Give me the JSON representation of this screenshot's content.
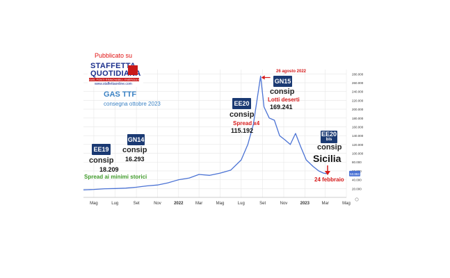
{
  "header": {
    "published_on": "Pubblicato su",
    "logo_line1": "STAFFETTA",
    "logo_line2": "QUOTIDIANA",
    "logo_tagline": "GAS, FONTI RINNOVABILI, ENERGIA ELETTRICA",
    "logo_url": "www.staffettaonline.com",
    "chart_title": "GAS TTF",
    "chart_subtitle": "consegna ottobre 2023"
  },
  "annotations": {
    "ee19": {
      "badge": "EE19",
      "label": "consip",
      "value": "18.209"
    },
    "gn14": {
      "badge": "GN14",
      "label": "consip",
      "value": "16.293"
    },
    "minimi": "Spread ai minimi storici",
    "ee20": {
      "badge": "EE20",
      "label": "consip",
      "note": "Spread x4",
      "value": "115.192"
    },
    "peak_date": "26 agosto 2022",
    "gn15": {
      "badge": "GN15",
      "label": "consip",
      "note": "Lotti deserti",
      "value": "169.241"
    },
    "ee20bis": {
      "badge": "EE20",
      "badge_sub": "bis",
      "label": "consip",
      "region": "Sicilia",
      "date": "24 febbraio"
    },
    "last_price": "53.884"
  },
  "colors": {
    "line": "#4a72d4",
    "badge": "#1b3a73",
    "red": "#d61a1a",
    "green": "#3f9a2a",
    "grid": "#e6e6e6",
    "axis_text": "#333333"
  },
  "chart_data": {
    "type": "line",
    "title": "GAS TTF",
    "subtitle": "consegna ottobre 2023",
    "xlabel": "",
    "ylabel": "",
    "x_ticks": [
      "Mag",
      "Lug",
      "Set",
      "Nov",
      "2022",
      "Mar",
      "Mag",
      "Lug",
      "Set",
      "Nov",
      "2023",
      "Mar",
      "Mag"
    ],
    "y_ticks": [
      20,
      40,
      60,
      80,
      100,
      120,
      140,
      160,
      180,
      200,
      220,
      240,
      260,
      280
    ],
    "y_tick_labels": [
      "20.000",
      "40.000",
      "60.000",
      "80.000",
      "100.000",
      "120.000",
      "140.000",
      "160.000",
      "180.000",
      "200.000",
      "220.000",
      "240.000",
      "260.000",
      "280.000"
    ],
    "ylim": [
      0,
      290
    ],
    "grid": true,
    "series": [
      {
        "points": [
          [
            "2021-04-01",
            17
          ],
          [
            "2021-05-01",
            18
          ],
          [
            "2021-06-01",
            19.5
          ],
          [
            "2021-07-01",
            20
          ],
          [
            "2021-08-01",
            21
          ],
          [
            "2021-09-01",
            23
          ],
          [
            "2021-10-01",
            26
          ],
          [
            "2021-11-01",
            28
          ],
          [
            "2021-12-01",
            33
          ],
          [
            "2022-01-01",
            40
          ],
          [
            "2022-02-01",
            44
          ],
          [
            "2022-03-01",
            52
          ],
          [
            "2022-04-01",
            50
          ],
          [
            "2022-05-01",
            55
          ],
          [
            "2022-06-01",
            62
          ],
          [
            "2022-07-01",
            85
          ],
          [
            "2022-07-20",
            120
          ],
          [
            "2022-08-05",
            165
          ],
          [
            "2022-08-26",
            275
          ],
          [
            "2022-09-05",
            205
          ],
          [
            "2022-09-20",
            180
          ],
          [
            "2022-10-05",
            175
          ],
          [
            "2022-10-20",
            140
          ],
          [
            "2022-11-05",
            130
          ],
          [
            "2022-11-20",
            120
          ],
          [
            "2022-12-05",
            145
          ],
          [
            "2022-12-20",
            115
          ],
          [
            "2023-01-05",
            85
          ],
          [
            "2023-01-25",
            70
          ],
          [
            "2023-02-10",
            60
          ],
          [
            "2023-02-24",
            55
          ],
          [
            "2023-03-05",
            53.9
          ]
        ]
      }
    ]
  }
}
